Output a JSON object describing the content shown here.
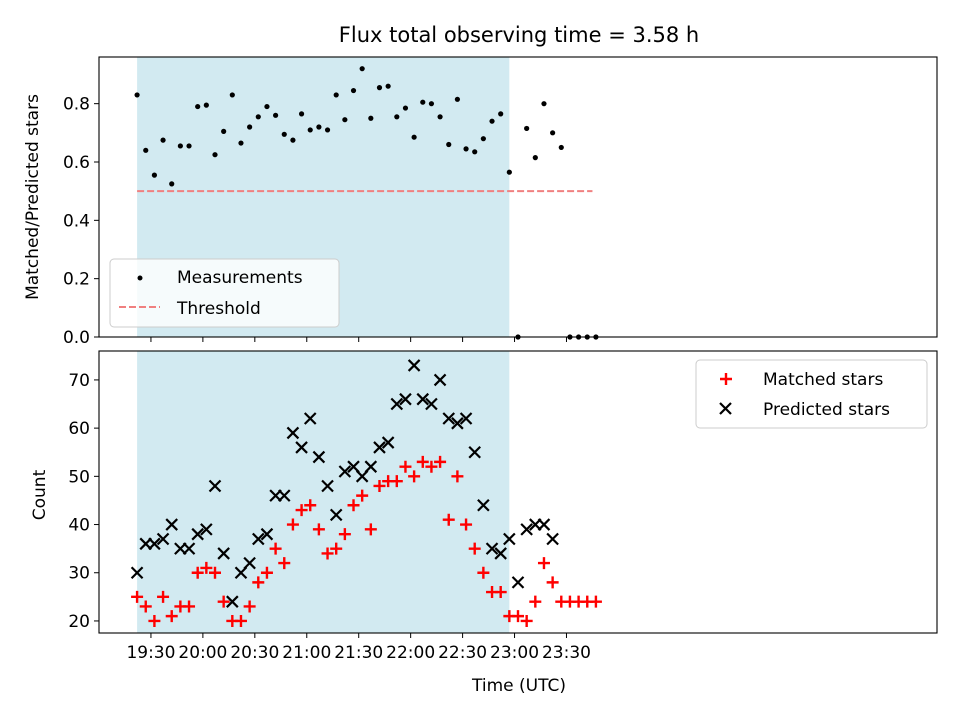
{
  "chart_data": [
    {
      "type": "scatter",
      "title": "Flux total observing time = 3.58 h",
      "xlabel": "",
      "ylabel": "Matched/Predicted stars",
      "xlim": [
        1140,
        1624
      ],
      "ylim": [
        0,
        0.96
      ],
      "yticks": [
        0.0,
        0.2,
        0.4,
        0.6,
        0.8
      ],
      "ytick_labels": [
        "0.0",
        "0.2",
        "0.4",
        "0.6",
        "0.8"
      ],
      "shaded_span": [
        1162,
        1377
      ],
      "threshold": {
        "value": 0.5,
        "x_range": [
          1162,
          1425
        ]
      },
      "legend": {
        "position": "lower-left",
        "entries": [
          "Measurements",
          "Threshold"
        ]
      },
      "series": [
        {
          "name": "Measurements",
          "x": [
            1162,
            1167,
            1172,
            1177,
            1182,
            1187,
            1192,
            1197,
            1202,
            1207,
            1212,
            1217,
            1222,
            1227,
            1232,
            1237,
            1242,
            1247,
            1252,
            1257,
            1262,
            1267,
            1272,
            1277,
            1282,
            1287,
            1292,
            1297,
            1302,
            1307,
            1312,
            1317,
            1322,
            1327,
            1332,
            1337,
            1342,
            1347,
            1352,
            1357,
            1362,
            1367,
            1372,
            1377,
            1382,
            1387,
            1392,
            1397,
            1402,
            1407,
            1412,
            1417,
            1422,
            1427
          ],
          "y": [
            0.83,
            0.64,
            0.555,
            0.675,
            0.525,
            0.655,
            0.655,
            0.79,
            0.795,
            0.625,
            0.705,
            0.83,
            0.665,
            0.72,
            0.755,
            0.79,
            0.76,
            0.695,
            0.675,
            0.765,
            0.71,
            0.72,
            0.71,
            0.83,
            0.745,
            0.845,
            0.92,
            0.75,
            0.855,
            0.86,
            0.755,
            0.785,
            0.685,
            0.805,
            0.8,
            0.755,
            0.66,
            0.815,
            0.645,
            0.635,
            0.68,
            0.74,
            0.765,
            0.565,
            0.0,
            0.715,
            0.615,
            0.8,
            0.7,
            0.65,
            0.0,
            0.0,
            0.0,
            0.0
          ]
        }
      ]
    },
    {
      "type": "scatter",
      "title": "",
      "xlabel": "Time (UTC)",
      "ylabel": "Count",
      "xlim": [
        1140,
        1624
      ],
      "ylim": [
        17.5,
        76
      ],
      "yticks": [
        20,
        30,
        40,
        50,
        60,
        70
      ],
      "ytick_labels": [
        "20",
        "30",
        "40",
        "50",
        "60",
        "70"
      ],
      "xticks": [
        1170,
        1200,
        1230,
        1260,
        1290,
        1320,
        1350,
        1380,
        1410
      ],
      "xtick_labels": [
        "19:30",
        "20:00",
        "20:30",
        "21:00",
        "21:30",
        "22:00",
        "22:30",
        "23:00",
        "23:30"
      ],
      "shaded_span": [
        1162,
        1377
      ],
      "legend": {
        "position": "top-right",
        "entries": [
          "Matched stars",
          "Predicted stars"
        ]
      },
      "series": [
        {
          "name": "Matched stars",
          "x": [
            1162,
            1167,
            1172,
            1177,
            1182,
            1187,
            1192,
            1197,
            1202,
            1207,
            1212,
            1217,
            1222,
            1227,
            1232,
            1237,
            1242,
            1247,
            1252,
            1257,
            1262,
            1267,
            1272,
            1277,
            1282,
            1287,
            1292,
            1297,
            1302,
            1307,
            1312,
            1317,
            1322,
            1327,
            1332,
            1337,
            1342,
            1347,
            1352,
            1357,
            1362,
            1367,
            1372,
            1377,
            1382,
            1387,
            1392,
            1397,
            1402,
            1407,
            1412,
            1417,
            1422,
            1427
          ],
          "y": [
            25,
            23,
            20,
            25,
            21,
            23,
            23,
            30,
            31,
            30,
            24,
            20,
            20,
            23,
            28,
            30,
            35,
            32,
            40,
            43,
            44,
            39,
            34,
            35,
            38,
            44,
            46,
            39,
            48,
            49,
            49,
            52,
            50,
            53,
            52,
            53,
            41,
            50,
            40,
            35,
            30,
            26,
            26,
            21,
            21,
            20,
            24,
            32,
            28,
            24,
            24,
            24,
            24,
            24
          ]
        },
        {
          "name": "Predicted stars",
          "x": [
            1162,
            1167,
            1172,
            1177,
            1182,
            1187,
            1192,
            1197,
            1202,
            1207,
            1212,
            1217,
            1222,
            1227,
            1232,
            1237,
            1242,
            1247,
            1252,
            1257,
            1262,
            1267,
            1272,
            1277,
            1282,
            1287,
            1292,
            1297,
            1302,
            1307,
            1312,
            1317,
            1322,
            1327,
            1332,
            1337,
            1342,
            1347,
            1352,
            1357,
            1362,
            1367,
            1372,
            1377,
            1382,
            1387,
            1392,
            1397,
            1402
          ],
          "y": [
            30,
            36,
            36,
            37,
            40,
            35,
            35,
            38,
            39,
            48,
            34,
            24,
            30,
            32,
            37,
            38,
            46,
            46,
            59,
            56,
            62,
            54,
            48,
            42,
            51,
            52,
            50,
            52,
            56,
            57,
            65,
            66,
            73,
            66,
            65,
            70,
            62,
            61,
            62,
            55,
            44,
            35,
            34,
            37,
            28,
            39,
            40,
            40,
            37
          ]
        }
      ]
    }
  ]
}
